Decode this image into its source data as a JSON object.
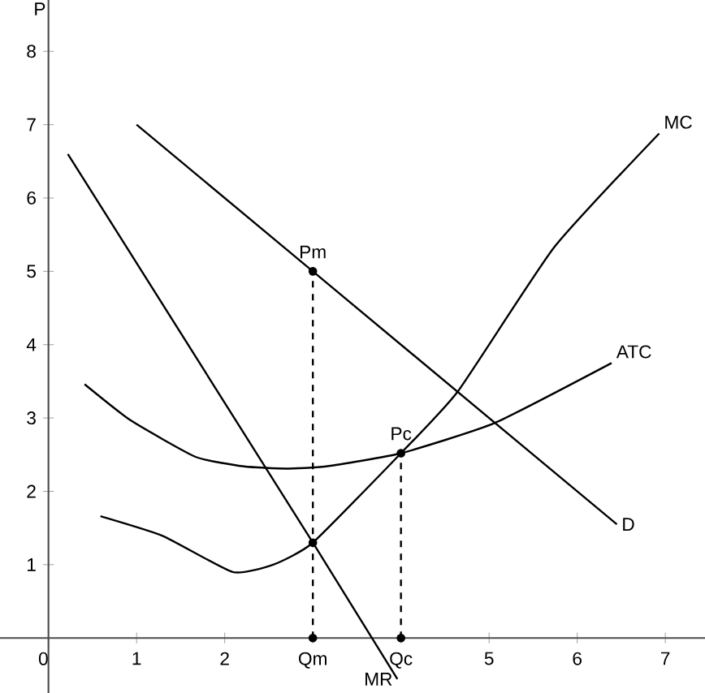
{
  "chart_data": {
    "type": "line",
    "ylabel": "P",
    "xlim": [
      -0.55,
      7.45
    ],
    "ylim": [
      -0.75,
      8.7
    ],
    "xticks": [
      0,
      1,
      2,
      {
        "value": 3,
        "label": "Qm"
      },
      {
        "value": 4,
        "label": "Qc"
      },
      5,
      6,
      7
    ],
    "yticks": [
      1,
      2,
      3,
      4,
      5,
      6,
      7,
      8
    ],
    "marker": "none",
    "annotations": [
      {
        "text": "Pm",
        "x": 3,
        "y": 5
      },
      {
        "text": "Pc",
        "x": 4,
        "y": 2.52
      }
    ],
    "series": [
      {
        "name": "MC",
        "color": "#000000",
        "x": [
          0.59,
          1.3,
          2.09,
          2.55,
          3,
          4,
          4.65,
          5.74,
          6.93
        ],
        "values": [
          1.66,
          1.39,
          0.9,
          1.0,
          1.3,
          2.52,
          3.37,
          5.33,
          6.88
        ]
      },
      {
        "name": "ATC",
        "color": "#000000",
        "x": [
          0.41,
          0.93,
          1.67,
          2.22,
          2.69,
          3.15,
          4,
          5.06,
          6.39
        ],
        "values": [
          3.46,
          2.97,
          2.47,
          2.34,
          2.31,
          2.34,
          2.52,
          2.93,
          3.75
        ]
      },
      {
        "name": "D",
        "color": "#000000",
        "x": [
          1,
          3,
          6.45
        ],
        "values": [
          7,
          5,
          1.55
        ]
      },
      {
        "name": "MR",
        "color": "#000000",
        "x": [
          0.22,
          3,
          3.96
        ],
        "values": [
          6.6,
          1.3,
          -0.56
        ]
      },
      {
        "color": "#000000",
        "line_style": "dashed",
        "x": [
          3,
          3
        ],
        "values": [
          0,
          5
        ]
      },
      {
        "color": "#000000",
        "line_style": "dashed",
        "x": [
          4,
          4
        ],
        "values": [
          0,
          2.52
        ]
      },
      {
        "type": "scatter",
        "marker": "circle",
        "color": "#000000",
        "x": [
          3,
          4,
          3,
          3,
          4
        ],
        "values": [
          5,
          2.52,
          1.3,
          0,
          0
        ]
      }
    ]
  }
}
